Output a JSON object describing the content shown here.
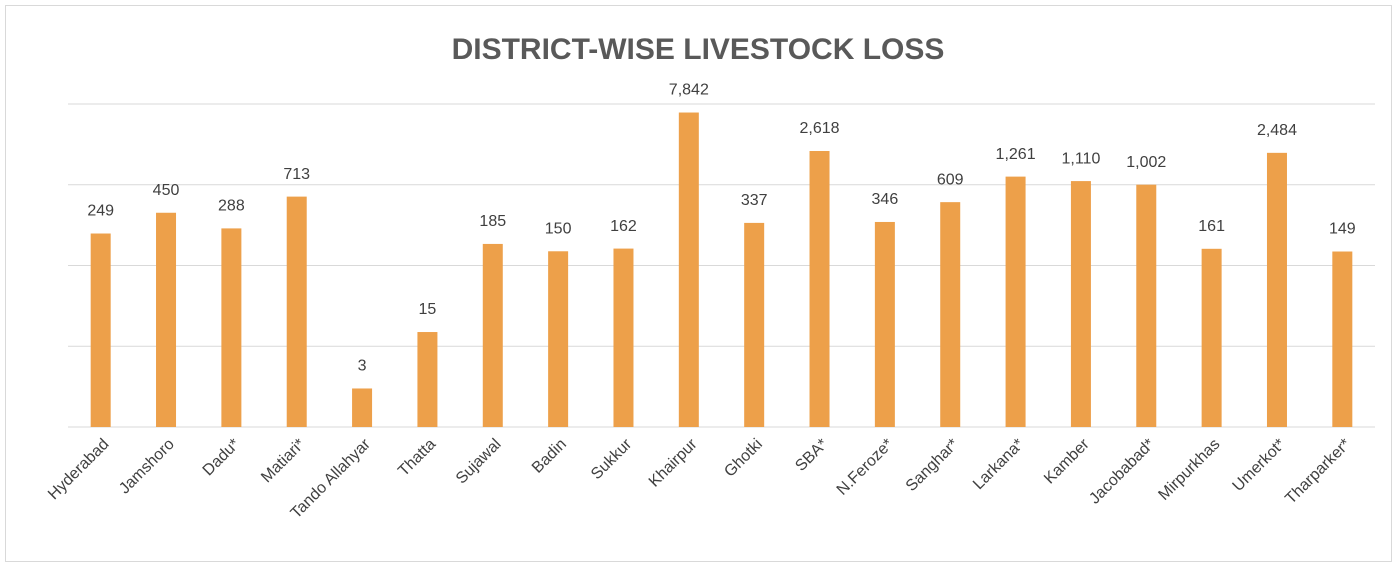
{
  "chart_data": {
    "type": "bar",
    "title": "DISTRICT-WISE LIVESTOCK LOSS",
    "categories": [
      "Hyderabad",
      "Jamshoro",
      "Dadu*",
      "Matiari*",
      "Tando Allahyar",
      "Thatta",
      "Sujawal",
      "Badin",
      "Sukkur",
      "Khairpur",
      "Ghotki",
      "SBA*",
      "N.Feroze*",
      "Sanghar*",
      "Larkana*",
      "Kamber",
      "Jacobabad*",
      "Mirpurkhas",
      "Umerkot*",
      "Tharparker*"
    ],
    "values": [
      249,
      450,
      288,
      713,
      3,
      15,
      185,
      150,
      162,
      7842,
      337,
      2618,
      346,
      609,
      1261,
      1110,
      1002,
      161,
      2484,
      149
    ],
    "value_labels": [
      "249",
      "450",
      "288",
      "713",
      "3",
      "15",
      "185",
      "150",
      "162",
      "7,842",
      "337",
      "2,618",
      "346",
      "609",
      "1,261",
      "1,110",
      "1,002",
      "161",
      "2,484",
      "149"
    ],
    "color": "#eda04a",
    "yscale": "log",
    "ylim": [
      1,
      10000
    ],
    "yticks": [
      1,
      10,
      100,
      1000,
      10000
    ],
    "grid": true
  }
}
